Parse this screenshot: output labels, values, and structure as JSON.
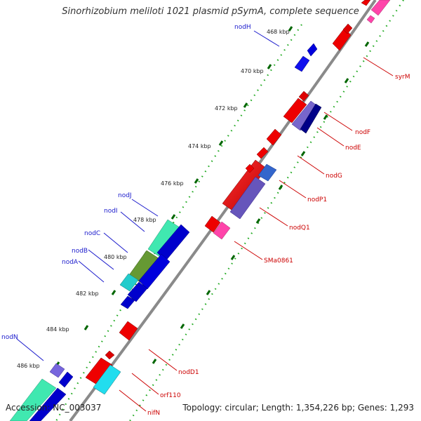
{
  "title": "Sinorhizobium meliloti 1021 plasmid pSymA, complete sequence",
  "footer": {
    "accession": "Accession: NC_003037",
    "summary": "Topology: circular; Length: 1,354,226 bp; Genes: 1,293"
  },
  "colors": {
    "backbone": "#888888",
    "tick_dots": "#22aa22",
    "tick_major": "#006600",
    "forward_label": "#1a1acc",
    "reverse_label": "#cc0000"
  },
  "kbp_ticks": [
    "468 kbp",
    "470 kbp",
    "472 kbp",
    "474 kbp",
    "476 kbp",
    "478 kbp",
    "480 kbp",
    "482 kbp",
    "484 kbp",
    "486 kbp"
  ],
  "forward_labels": [
    "nodH",
    "nodJ",
    "nodI",
    "nodC",
    "nodB",
    "nodA",
    "nodN"
  ],
  "reverse_labels": [
    "syrM",
    "nodF",
    "nodE",
    "nodG",
    "nodP1",
    "nodQ1",
    "SMa0861",
    "nodD1",
    "orf110",
    "nifN"
  ]
}
